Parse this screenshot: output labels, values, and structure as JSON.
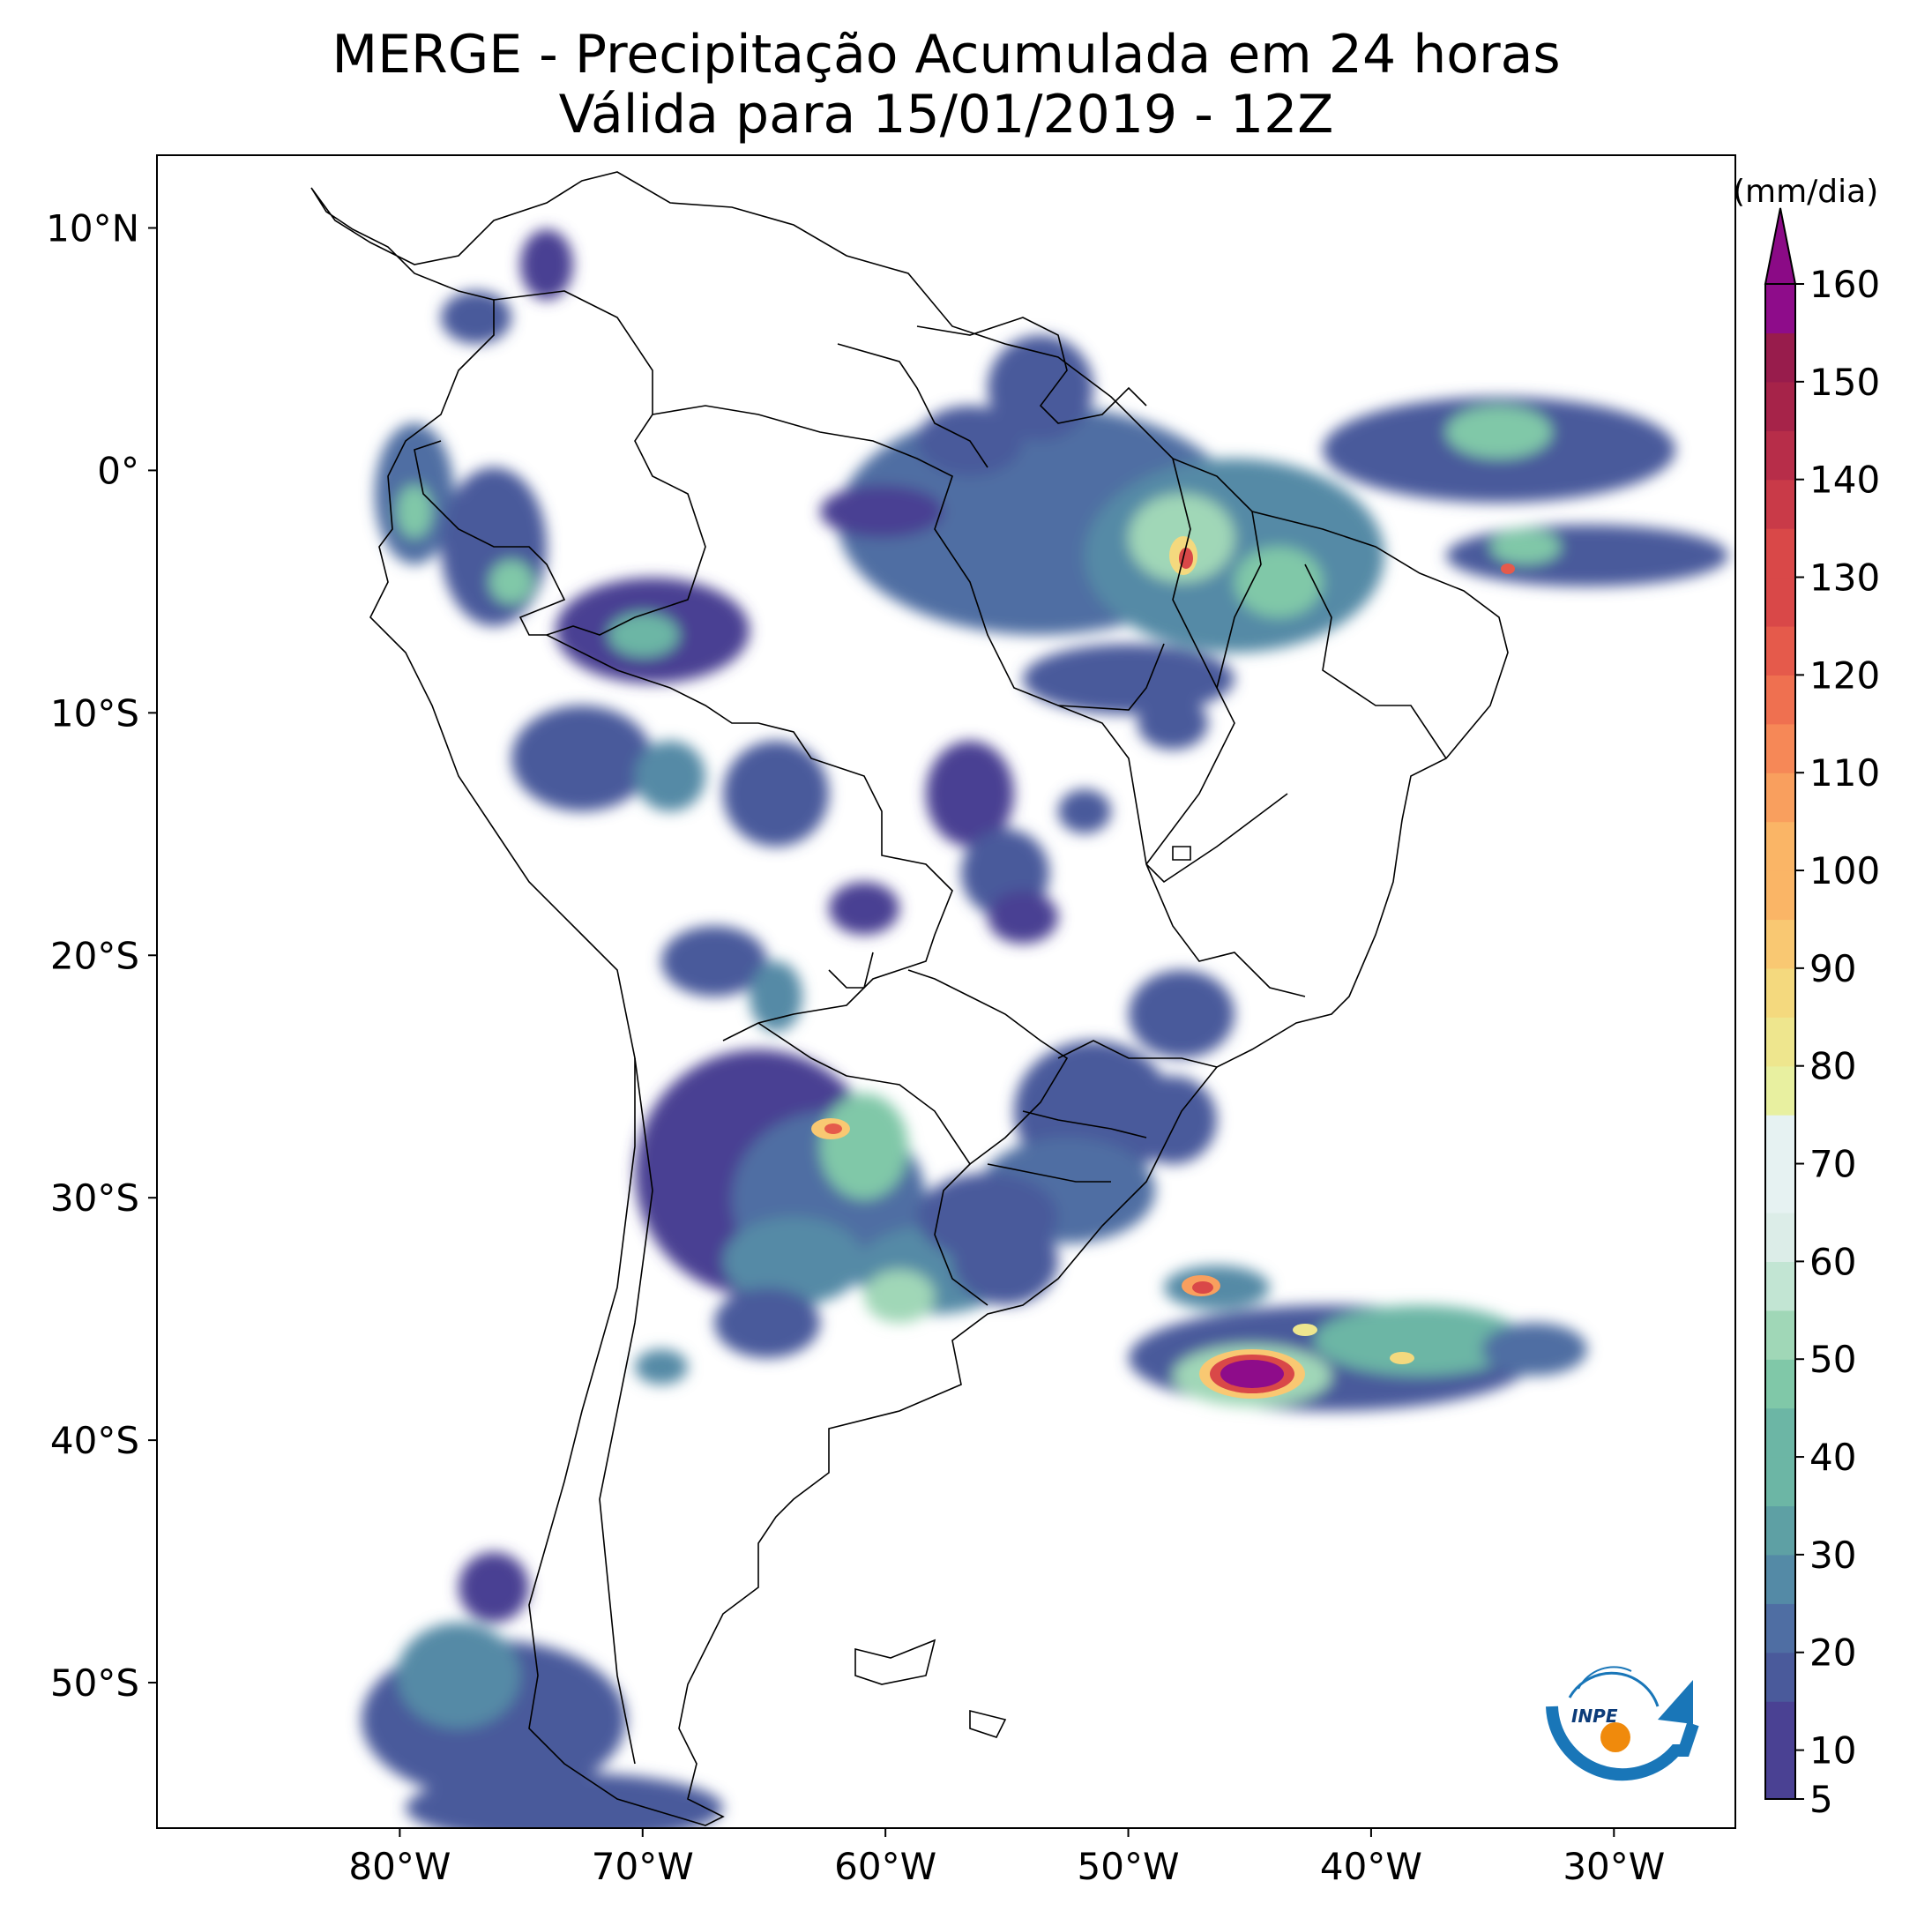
{
  "title": {
    "line1": "MERGE - Precipitação Acumulada em 24 horas",
    "line2": "Válida para 15/01/2019 - 12Z"
  },
  "map": {
    "region": "South America",
    "lon_range": [
      -90,
      -25
    ],
    "lat_range": [
      -56,
      13
    ],
    "lon_ticks": [
      {
        "value": -80,
        "label": "80°W"
      },
      {
        "value": -70,
        "label": "70°W"
      },
      {
        "value": -60,
        "label": "60°W"
      },
      {
        "value": -50,
        "label": "50°W"
      },
      {
        "value": -40,
        "label": "40°W"
      },
      {
        "value": -30,
        "label": "30°W"
      }
    ],
    "lat_ticks": [
      {
        "value": 10,
        "label": "10°N"
      },
      {
        "value": 0,
        "label": "0°"
      },
      {
        "value": -10,
        "label": "10°S"
      },
      {
        "value": -20,
        "label": "20°S"
      },
      {
        "value": -30,
        "label": "30°S"
      },
      {
        "value": -40,
        "label": "40°S"
      },
      {
        "value": -50,
        "label": "50°S"
      }
    ]
  },
  "colorbar": {
    "units": "(mm/dia)",
    "levels": [
      5,
      10,
      15,
      20,
      25,
      30,
      35,
      40,
      45,
      50,
      55,
      60,
      65,
      70,
      75,
      80,
      85,
      90,
      95,
      100,
      105,
      110,
      115,
      120,
      125,
      130,
      135,
      140,
      145,
      150,
      155,
      160
    ],
    "tick_labels": [
      "5",
      "10",
      "20",
      "30",
      "40",
      "50",
      "60",
      "70",
      "80",
      "90",
      "100",
      "110",
      "120",
      "130",
      "140",
      "150",
      "160"
    ],
    "colors": [
      "#4a4193",
      "#4a5a9b",
      "#4f6ea3",
      "#548aa6",
      "#5ea0a4",
      "#6cb6a5",
      "#80c8a8",
      "#a0d7b7",
      "#c2e5d3",
      "#dcede8",
      "#e6f2f2",
      "#e8f0a0",
      "#eee68e",
      "#f4d97e",
      "#f9c872",
      "#fab566",
      "#f99f5e",
      "#f68857",
      "#ef7050",
      "#e55a4b",
      "#d94848",
      "#c93a48",
      "#b72d49",
      "#a62349",
      "#981c4c",
      "#8e0c8a"
    ],
    "extend_color": "#8b0a86"
  },
  "logo": {
    "text": "INPE"
  }
}
